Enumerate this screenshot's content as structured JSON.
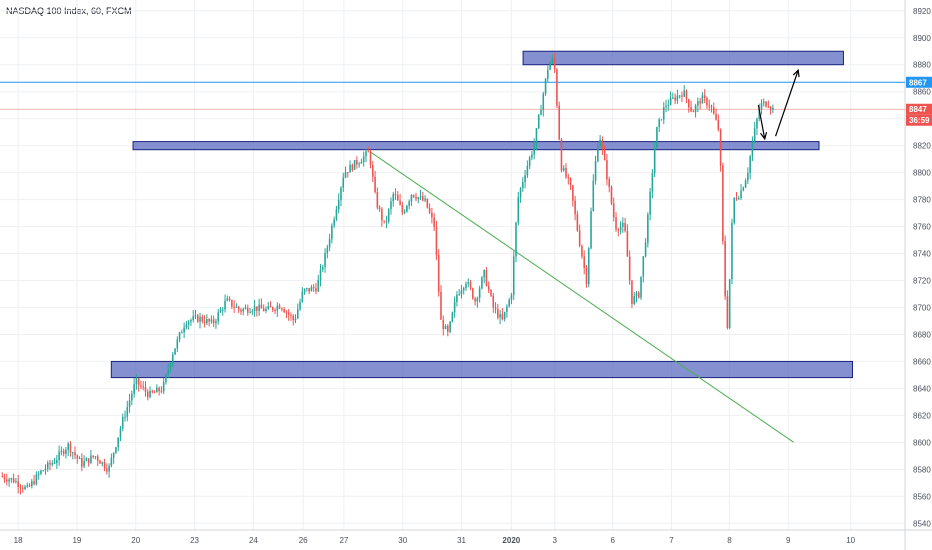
{
  "header": {
    "title": "NASDAQ 100 Index, 60, FXCM"
  },
  "colors": {
    "up": "#26a69a",
    "down": "#ef5350",
    "zone_fill": "#5c6bc0",
    "zone_stroke": "#1a237e",
    "trendline": "#4caf50",
    "bid_line": "#2196f3",
    "ask_line": "#ef5350",
    "grid": "#eef0f3"
  },
  "price_tags": [
    {
      "label": "8867",
      "value": 8867,
      "color": "#2196f3"
    },
    {
      "label": "8847",
      "value": 8847,
      "color": "#ef5350"
    },
    {
      "label": "36:59",
      "value": 8836,
      "color": "#ef5350"
    }
  ],
  "chart_data": {
    "type": "candlestick",
    "title": "NASDAQ 100 Index, 60, FXCM",
    "ylim": [
      8535,
      8928
    ],
    "y_ticks": [
      8540,
      8560,
      8580,
      8600,
      8620,
      8640,
      8660,
      8680,
      8700,
      8720,
      8740,
      8760,
      8780,
      8800,
      8820,
      8840,
      8860,
      8880,
      8900,
      8920
    ],
    "x_ticks": [
      {
        "label": "18",
        "pos": 0.02
      },
      {
        "label": "19",
        "pos": 0.085
      },
      {
        "label": "20",
        "pos": 0.15
      },
      {
        "label": "23",
        "pos": 0.215
      },
      {
        "label": "24",
        "pos": 0.28
      },
      {
        "label": "26",
        "pos": 0.335
      },
      {
        "label": "27",
        "pos": 0.38
      },
      {
        "label": "30",
        "pos": 0.445
      },
      {
        "label": "31",
        "pos": 0.51
      },
      {
        "label": "2020",
        "pos": 0.565
      },
      {
        "label": "3",
        "pos": 0.613
      },
      {
        "label": "6",
        "pos": 0.677
      },
      {
        "label": "7",
        "pos": 0.742
      },
      {
        "label": "8",
        "pos": 0.806
      },
      {
        "label": "9",
        "pos": 0.871
      },
      {
        "label": "10",
        "pos": 0.94
      }
    ],
    "path": [
      [
        0.0,
        8575
      ],
      [
        0.015,
        8572
      ],
      [
        0.03,
        8565
      ],
      [
        0.045,
        8578
      ],
      [
        0.06,
        8586
      ],
      [
        0.075,
        8598
      ],
      [
        0.09,
        8584
      ],
      [
        0.105,
        8590
      ],
      [
        0.12,
        8580
      ],
      [
        0.135,
        8615
      ],
      [
        0.15,
        8645
      ],
      [
        0.165,
        8635
      ],
      [
        0.18,
        8640
      ],
      [
        0.19,
        8665
      ],
      [
        0.205,
        8690
      ],
      [
        0.22,
        8692
      ],
      [
        0.235,
        8688
      ],
      [
        0.25,
        8705
      ],
      [
        0.265,
        8698
      ],
      [
        0.28,
        8700
      ],
      [
        0.295,
        8698
      ],
      [
        0.31,
        8702
      ],
      [
        0.325,
        8690
      ],
      [
        0.335,
        8712
      ],
      [
        0.35,
        8715
      ],
      [
        0.36,
        8740
      ],
      [
        0.37,
        8770
      ],
      [
        0.38,
        8800
      ],
      [
        0.395,
        8808
      ],
      [
        0.408,
        8815
      ],
      [
        0.415,
        8780
      ],
      [
        0.425,
        8760
      ],
      [
        0.435,
        8785
      ],
      [
        0.445,
        8770
      ],
      [
        0.455,
        8785
      ],
      [
        0.47,
        8778
      ],
      [
        0.48,
        8760
      ],
      [
        0.487,
        8690
      ],
      [
        0.495,
        8680
      ],
      [
        0.505,
        8710
      ],
      [
        0.515,
        8720
      ],
      [
        0.525,
        8705
      ],
      [
        0.535,
        8725
      ],
      [
        0.545,
        8700
      ],
      [
        0.555,
        8690
      ],
      [
        0.565,
        8710
      ],
      [
        0.572,
        8780
      ],
      [
        0.58,
        8800
      ],
      [
        0.59,
        8820
      ],
      [
        0.598,
        8850
      ],
      [
        0.606,
        8880
      ],
      [
        0.612,
        8885
      ],
      [
        0.62,
        8805
      ],
      [
        0.63,
        8790
      ],
      [
        0.64,
        8750
      ],
      [
        0.648,
        8720
      ],
      [
        0.655,
        8790
      ],
      [
        0.662,
        8830
      ],
      [
        0.67,
        8800
      ],
      [
        0.68,
        8760
      ],
      [
        0.69,
        8760
      ],
      [
        0.698,
        8705
      ],
      [
        0.706,
        8710
      ],
      [
        0.715,
        8760
      ],
      [
        0.725,
        8830
      ],
      [
        0.735,
        8850
      ],
      [
        0.745,
        8855
      ],
      [
        0.755,
        8860
      ],
      [
        0.765,
        8845
      ],
      [
        0.775,
        8855
      ],
      [
        0.785,
        8850
      ],
      [
        0.795,
        8830
      ],
      [
        0.8,
        8720
      ],
      [
        0.804,
        8685
      ],
      [
        0.81,
        8780
      ],
      [
        0.818,
        8785
      ],
      [
        0.826,
        8800
      ],
      [
        0.832,
        8825
      ],
      [
        0.84,
        8850
      ],
      [
        0.848,
        8852
      ],
      [
        0.854,
        8847
      ]
    ],
    "zones": [
      {
        "x0": 0.578,
        "x1": 0.932,
        "y0": 8880,
        "y1": 8890
      },
      {
        "x0": 0.147,
        "x1": 0.905,
        "y0": 8817,
        "y1": 8823
      },
      {
        "x0": 0.123,
        "x1": 0.942,
        "y0": 8648,
        "y1": 8660
      }
    ],
    "trendline": {
      "x0": 0.41,
      "y0": 8815,
      "x1": 0.877,
      "y1": 8600
    },
    "arrows": [
      {
        "x0": 0.838,
        "y0": 8850,
        "x1": 0.845,
        "y1": 8825
      },
      {
        "x0": 0.857,
        "y0": 8827,
        "x1": 0.882,
        "y1": 8876
      }
    ]
  }
}
